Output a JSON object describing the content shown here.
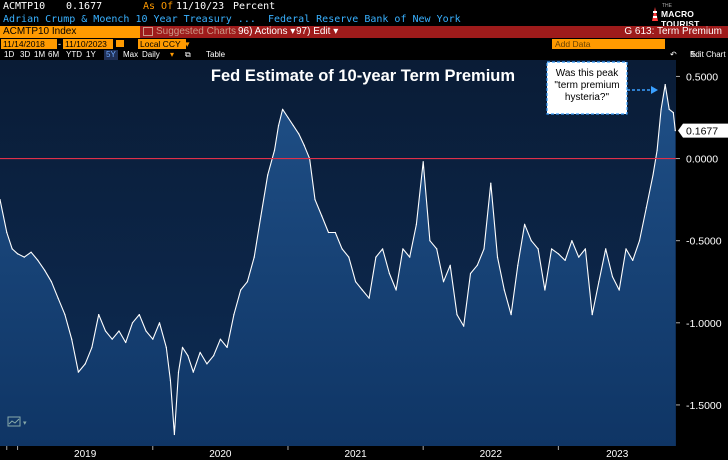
{
  "header": {
    "ticker": "ACMTP10",
    "last_value": "0.1677",
    "asof_label": "As Of",
    "asof_date": "11/10/23",
    "unit": "Percent",
    "description": "Adrian Crump & Moench 10 Year Treasury ...",
    "source": "Federal Reserve Bank of New York"
  },
  "toolbar": {
    "security": "ACMTP10 Index",
    "suggested": "Suggested Charts",
    "actions": "96) Actions",
    "edit": "97) Edit",
    "function_title": "G 613: Term Premium"
  },
  "datebar": {
    "start_date": "11/14/2018",
    "end_date": "11/10/2023",
    "currency": "Local CCY",
    "add_data": "Add Data",
    "edit_chart": "Edit Chart"
  },
  "ranges": [
    "1D",
    "3D",
    "1M",
    "6M",
    "YTD",
    "1Y",
    "5Y",
    "Max"
  ],
  "selected_range": "5Y",
  "frequency": "Daily",
  "table_label": "Table",
  "brand": {
    "small": "THE",
    "name": "MACRO TOURIST"
  },
  "chart_data": {
    "type": "area",
    "title": "Fed Estimate of 10-year Term Premium",
    "annotation": [
      "Was this peak",
      "\"term premium",
      "hysteria?\""
    ],
    "last_value_label": "0.1677",
    "reference_line": 0.0,
    "ylim": [
      -1.75,
      0.6
    ],
    "y_ticks": [
      0.5,
      0.0,
      -0.5,
      -1.0,
      -1.5
    ],
    "y_tick_labels": [
      "0.5000",
      "0.0000",
      "-0.5000",
      "-1.0000",
      "-1.5000"
    ],
    "x_tick_labels": [
      "2019",
      "2020",
      "2021",
      "2022",
      "2023"
    ],
    "x_tick_positions": [
      2019.0,
      2020.0,
      2021.0,
      2022.0,
      2023.0
    ],
    "xlim": [
      2018.87,
      2023.87
    ],
    "series": [
      {
        "name": "ACMTP10 Index",
        "x": [
          2018.87,
          2018.92,
          2018.96,
          2019.0,
          2019.05,
          2019.1,
          2019.15,
          2019.2,
          2019.25,
          2019.3,
          2019.35,
          2019.4,
          2019.45,
          2019.5,
          2019.55,
          2019.6,
          2019.65,
          2019.7,
          2019.75,
          2019.8,
          2019.85,
          2019.9,
          2019.95,
          2020.0,
          2020.05,
          2020.1,
          2020.13,
          2020.16,
          2020.19,
          2020.22,
          2020.26,
          2020.3,
          2020.35,
          2020.4,
          2020.45,
          2020.5,
          2020.55,
          2020.6,
          2020.65,
          2020.7,
          2020.75,
          2020.8,
          2020.85,
          2020.9,
          2020.93,
          2020.96,
          2021.0,
          2021.04,
          2021.08,
          2021.12,
          2021.16,
          2021.2,
          2021.25,
          2021.3,
          2021.35,
          2021.4,
          2021.45,
          2021.5,
          2021.55,
          2021.6,
          2021.65,
          2021.7,
          2021.75,
          2021.8,
          2021.85,
          2021.9,
          2021.95,
          2022.0,
          2022.05,
          2022.1,
          2022.15,
          2022.2,
          2022.25,
          2022.3,
          2022.35,
          2022.4,
          2022.45,
          2022.5,
          2022.55,
          2022.6,
          2022.65,
          2022.7,
          2022.75,
          2022.8,
          2022.85,
          2022.9,
          2022.95,
          2023.0,
          2023.05,
          2023.1,
          2023.15,
          2023.2,
          2023.25,
          2023.3,
          2023.35,
          2023.4,
          2023.45,
          2023.5,
          2023.55,
          2023.6,
          2023.65,
          2023.7,
          2023.73,
          2023.76,
          2023.79,
          2023.82,
          2023.85,
          2023.865
        ],
        "values": [
          -0.25,
          -0.45,
          -0.55,
          -0.58,
          -0.6,
          -0.57,
          -0.62,
          -0.68,
          -0.75,
          -0.85,
          -0.95,
          -1.1,
          -1.3,
          -1.25,
          -1.15,
          -0.95,
          -1.05,
          -1.1,
          -1.05,
          -1.12,
          -1.0,
          -0.95,
          -1.05,
          -1.1,
          -1.0,
          -1.15,
          -1.35,
          -1.68,
          -1.3,
          -1.15,
          -1.2,
          -1.3,
          -1.18,
          -1.25,
          -1.2,
          -1.1,
          -1.15,
          -0.95,
          -0.8,
          -0.75,
          -0.6,
          -0.35,
          -0.1,
          0.05,
          0.2,
          0.3,
          0.25,
          0.2,
          0.15,
          0.08,
          0.0,
          -0.25,
          -0.35,
          -0.45,
          -0.45,
          -0.55,
          -0.6,
          -0.75,
          -0.8,
          -0.85,
          -0.6,
          -0.55,
          -0.7,
          -0.8,
          -0.55,
          -0.6,
          -0.4,
          -0.02,
          -0.5,
          -0.55,
          -0.75,
          -0.65,
          -0.95,
          -1.02,
          -0.7,
          -0.65,
          -0.55,
          -0.15,
          -0.6,
          -0.8,
          -0.95,
          -0.65,
          -0.4,
          -0.5,
          -0.55,
          -0.8,
          -0.55,
          -0.58,
          -0.62,
          -0.5,
          -0.6,
          -0.55,
          -0.95,
          -0.75,
          -0.55,
          -0.72,
          -0.8,
          -0.55,
          -0.62,
          -0.5,
          -0.3,
          -0.1,
          0.05,
          0.3,
          0.45,
          0.3,
          0.28,
          0.17
        ]
      }
    ]
  }
}
